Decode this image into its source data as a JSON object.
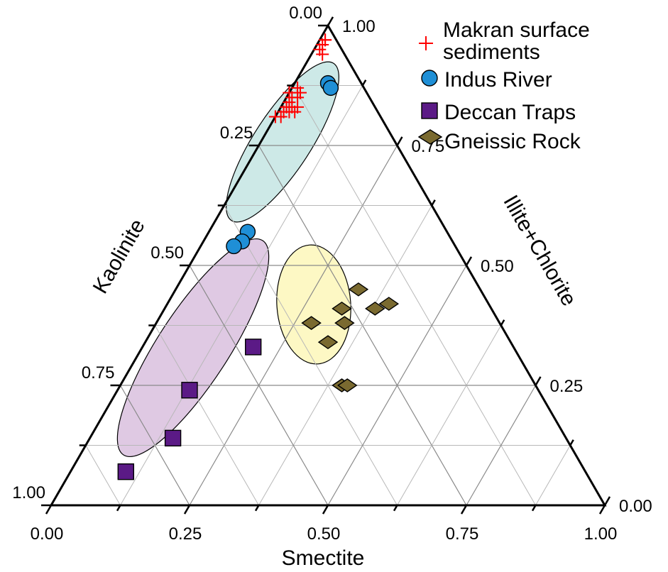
{
  "chart_data": {
    "type": "scatter",
    "subtype": "ternary",
    "axes": {
      "bottom": {
        "label": "Smectite",
        "ticks": [
          "0.00",
          "0.25",
          "0.50",
          "0.75",
          "1.00"
        ]
      },
      "left": {
        "label": "Kaolinite",
        "ticks": [
          "0.00",
          "0.25",
          "0.50",
          "0.75",
          "1.00"
        ]
      },
      "right": {
        "label": "Illite+Chlorite",
        "ticks": [
          "0.00",
          "0.25",
          "0.50",
          "0.75",
          "1.00"
        ]
      }
    },
    "grid": true,
    "legend_position": "top-right",
    "series": [
      {
        "name": "Makran surface sediments",
        "marker": "plus",
        "color": "#ff0000",
        "points": [
          {
            "smectite": 0.01,
            "kaolinite": 0.02,
            "illite_chlorite": 0.97
          },
          {
            "smectite": 0.01,
            "kaolinite": 0.03,
            "illite_chlorite": 0.96
          },
          {
            "smectite": 0.01,
            "kaolinite": 0.04,
            "illite_chlorite": 0.95
          },
          {
            "smectite": 0.02,
            "kaolinite": 0.04,
            "illite_chlorite": 0.94
          },
          {
            "smectite": 0.01,
            "kaolinite": 0.02,
            "illite_chlorite": 0.97
          },
          {
            "smectite": 0.01,
            "kaolinite": 0.12,
            "illite_chlorite": 0.87
          },
          {
            "smectite": 0.02,
            "kaolinite": 0.13,
            "illite_chlorite": 0.85
          },
          {
            "smectite": 0.01,
            "kaolinite": 0.14,
            "illite_chlorite": 0.85
          },
          {
            "smectite": 0.02,
            "kaolinite": 0.15,
            "illite_chlorite": 0.83
          },
          {
            "smectite": 0.01,
            "kaolinite": 0.16,
            "illite_chlorite": 0.83
          },
          {
            "smectite": 0.02,
            "kaolinite": 0.16,
            "illite_chlorite": 0.82
          },
          {
            "smectite": 0.01,
            "kaolinite": 0.17,
            "illite_chlorite": 0.82
          },
          {
            "smectite": 0.03,
            "kaolinite": 0.14,
            "illite_chlorite": 0.83
          },
          {
            "smectite": 0.01,
            "kaolinite": 0.18,
            "illite_chlorite": 0.81
          },
          {
            "smectite": 0.0,
            "kaolinite": 0.19,
            "illite_chlorite": 0.81
          },
          {
            "smectite": 0.01,
            "kaolinite": 0.15,
            "illite_chlorite": 0.84
          },
          {
            "smectite": 0.02,
            "kaolinite": 0.12,
            "illite_chlorite": 0.86
          },
          {
            "smectite": 0.0,
            "kaolinite": 0.14,
            "illite_chlorite": 0.86
          },
          {
            "smectite": 0.03,
            "kaolinite": 0.15,
            "illite_chlorite": 0.82
          }
        ]
      },
      {
        "name": "Indus River",
        "marker": "circle",
        "color": "#1f8fd6",
        "points": [
          {
            "smectite": 0.06,
            "kaolinite": 0.06,
            "illite_chlorite": 0.88
          },
          {
            "smectite": 0.07,
            "kaolinite": 0.06,
            "illite_chlorite": 0.87
          },
          {
            "smectite": 0.07,
            "kaolinite": 0.36,
            "illite_chlorite": 0.57
          },
          {
            "smectite": 0.07,
            "kaolinite": 0.38,
            "illite_chlorite": 0.55
          },
          {
            "smectite": 0.06,
            "kaolinite": 0.4,
            "illite_chlorite": 0.54
          }
        ]
      },
      {
        "name": "Deccan Traps",
        "marker": "square",
        "color": "#5b1a86",
        "points": [
          {
            "smectite": 0.2,
            "kaolinite": 0.47,
            "illite_chlorite": 0.33
          },
          {
            "smectite": 0.13,
            "kaolinite": 0.63,
            "illite_chlorite": 0.24
          },
          {
            "smectite": 0.15,
            "kaolinite": 0.71,
            "illite_chlorite": 0.14
          },
          {
            "smectite": 0.1,
            "kaolinite": 0.83,
            "illite_chlorite": 0.07
          }
        ]
      },
      {
        "name": "Gneissic Rock",
        "marker": "diamond",
        "color": "#7a6a30",
        "points": [
          {
            "smectite": 0.33,
            "kaolinite": 0.22,
            "illite_chlorite": 0.45
          },
          {
            "smectite": 0.32,
            "kaolinite": 0.27,
            "illite_chlorite": 0.41
          },
          {
            "smectite": 0.38,
            "kaolinite": 0.21,
            "illite_chlorite": 0.41
          },
          {
            "smectite": 0.4,
            "kaolinite": 0.18,
            "illite_chlorite": 0.42
          },
          {
            "smectite": 0.28,
            "kaolinite": 0.34,
            "illite_chlorite": 0.38
          },
          {
            "smectite": 0.34,
            "kaolinite": 0.28,
            "illite_chlorite": 0.38
          },
          {
            "smectite": 0.33,
            "kaolinite": 0.33,
            "illite_chlorite": 0.34
          },
          {
            "smectite": 0.4,
            "kaolinite": 0.35,
            "illite_chlorite": 0.25
          },
          {
            "smectite": 0.41,
            "kaolinite": 0.34,
            "illite_chlorite": 0.25
          }
        ]
      }
    ],
    "fields": [
      {
        "name": "Indus River",
        "fill": "#cde9e7"
      },
      {
        "name": "Deccan Traps",
        "fill": "#dfc9e3"
      },
      {
        "name": "Gneissic Rock",
        "fill": "#fdf8c4"
      }
    ]
  }
}
